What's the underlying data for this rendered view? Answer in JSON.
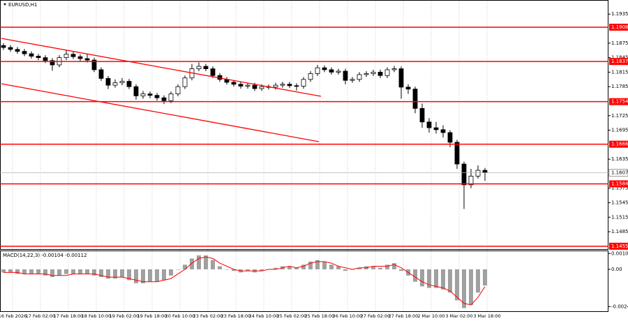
{
  "chart_data": [
    {
      "type": "candlestick",
      "title": "EURUSD,H1",
      "candles": [
        [
          1.187,
          1.1875,
          1.1861,
          1.1866
        ],
        [
          1.1866,
          1.1871,
          1.1857,
          1.1862
        ],
        [
          1.1862,
          1.1867,
          1.1853,
          1.1858
        ],
        [
          1.1858,
          1.1863,
          1.1848,
          1.1853
        ],
        [
          1.1853,
          1.1858,
          1.1843,
          1.1848
        ],
        [
          1.1848,
          1.1853,
          1.184,
          1.1845
        ],
        [
          1.1845,
          1.185,
          1.1834,
          1.1839
        ],
        [
          1.1839,
          1.1844,
          1.1818,
          1.183
        ],
        [
          1.183,
          1.185,
          1.1825,
          1.1845
        ],
        [
          1.1845,
          1.186,
          1.184,
          1.1852
        ],
        [
          1.1852,
          1.1857,
          1.1842,
          1.1847
        ],
        [
          1.1847,
          1.1852,
          1.1838,
          1.1843
        ],
        [
          1.1843,
          1.1852,
          1.1835,
          1.184
        ],
        [
          1.184,
          1.1845,
          1.1815,
          1.182
        ],
        [
          1.182,
          1.1825,
          1.1797,
          1.1802
        ],
        [
          1.1802,
          1.1807,
          1.178,
          1.1788
        ],
        [
          1.1788,
          1.18,
          1.1783,
          1.1793
        ],
        [
          1.1793,
          1.1803,
          1.1788,
          1.1796
        ],
        [
          1.1796,
          1.1801,
          1.178,
          1.1785
        ],
        [
          1.1785,
          1.179,
          1.1758,
          1.1766
        ],
        [
          1.1766,
          1.1776,
          1.176,
          1.177
        ],
        [
          1.177,
          1.1775,
          1.1761,
          1.1767
        ],
        [
          1.1767,
          1.1772,
          1.1756,
          1.1762
        ],
        [
          1.1762,
          1.1767,
          1.1749,
          1.1756
        ],
        [
          1.1756,
          1.1775,
          1.1751,
          1.177
        ],
        [
          1.177,
          1.179,
          1.1765,
          1.1785
        ],
        [
          1.1785,
          1.1808,
          1.178,
          1.1803
        ],
        [
          1.1803,
          1.1832,
          1.1798,
          1.1822
        ],
        [
          1.1822,
          1.1835,
          1.1817,
          1.1827
        ],
        [
          1.1827,
          1.1832,
          1.1817,
          1.1822
        ],
        [
          1.1822,
          1.1827,
          1.1803,
          1.1808
        ],
        [
          1.1808,
          1.1813,
          1.1795,
          1.18
        ],
        [
          1.18,
          1.1805,
          1.1789,
          1.1794
        ],
        [
          1.1794,
          1.1799,
          1.1785,
          1.179
        ],
        [
          1.179,
          1.1795,
          1.1781,
          1.1786
        ],
        [
          1.1786,
          1.1793,
          1.1781,
          1.1788
        ],
        [
          1.1788,
          1.1793,
          1.1776,
          1.1781
        ],
        [
          1.1781,
          1.179,
          1.1776,
          1.1785
        ],
        [
          1.1785,
          1.179,
          1.1779,
          1.1784
        ],
        [
          1.1784,
          1.1793,
          1.1779,
          1.1788
        ],
        [
          1.1788,
          1.1795,
          1.1783,
          1.179
        ],
        [
          1.179,
          1.1795,
          1.1782,
          1.1787
        ],
        [
          1.1787,
          1.1792,
          1.1777,
          1.1786
        ],
        [
          1.1786,
          1.1805,
          1.1781,
          1.18
        ],
        [
          1.18,
          1.1817,
          1.1795,
          1.1812
        ],
        [
          1.1812,
          1.183,
          1.1807,
          1.1824
        ],
        [
          1.1824,
          1.1829,
          1.1815,
          1.182
        ],
        [
          1.182,
          1.1825,
          1.181,
          1.1815
        ],
        [
          1.1815,
          1.1822,
          1.181,
          1.1817
        ],
        [
          1.1817,
          1.1822,
          1.179,
          1.1798
        ],
        [
          1.1798,
          1.1805,
          1.1793,
          1.18
        ],
        [
          1.18,
          1.1815,
          1.1795,
          1.181
        ],
        [
          1.181,
          1.1817,
          1.1805,
          1.1812
        ],
        [
          1.1812,
          1.182,
          1.1807,
          1.1815
        ],
        [
          1.1815,
          1.182,
          1.1803,
          1.1808
        ],
        [
          1.1808,
          1.1825,
          1.1803,
          1.182
        ],
        [
          1.182,
          1.1828,
          1.1815,
          1.1822
        ],
        [
          1.1822,
          1.1827,
          1.176,
          1.1784
        ],
        [
          1.1784,
          1.179,
          1.177,
          1.178
        ],
        [
          1.178,
          1.1785,
          1.173,
          1.174
        ],
        [
          1.174,
          1.175,
          1.17,
          1.1712
        ],
        [
          1.1712,
          1.172,
          1.169,
          1.17
        ],
        [
          1.17,
          1.1712,
          1.1688,
          1.1696
        ],
        [
          1.1696,
          1.1705,
          1.168,
          1.169
        ],
        [
          1.169,
          1.1695,
          1.166,
          1.167
        ],
        [
          1.167,
          1.1675,
          1.1615,
          1.1625
        ],
        [
          1.1625,
          1.163,
          1.1532,
          1.1582
        ],
        [
          1.1582,
          1.1615,
          1.1575,
          1.16
        ],
        [
          1.16,
          1.1622,
          1.1595,
          1.1612
        ],
        [
          1.1612,
          1.1617,
          1.159,
          1.1607
        ]
      ],
      "ylim": [
        1.1449,
        1.1957
      ],
      "yticks": [
        1.1935,
        1.1875,
        1.1845,
        1.1815,
        1.1785,
        1.1725,
        1.1695,
        1.1635,
        1.1575,
        1.1545,
        1.1515,
        1.1485
      ],
      "levels": [
        1.1908,
        1.1837,
        1.1754,
        1.1666,
        1.1584,
        1.1455
      ],
      "level_color": "#ff0000",
      "current_price": 1.1607,
      "grid": true,
      "x_labels": [
        "16 Feb 2026",
        "17 Feb 02:00",
        "17 Feb 18:00",
        "18 Feb 10:00",
        "19 Feb 02:00",
        "19 Feb 18:00",
        "20 Feb 10:00",
        "23 Feb 02:00",
        "23 Feb 18:00",
        "24 Feb 10:00",
        "25 Feb 02:00",
        "25 Feb 18:00",
        "26 Feb 10:00",
        "27 Feb 02:00",
        "27 Feb 18:00",
        "2 Mar 10:00",
        "3 Mar 02:00",
        "3 Mar 18:00"
      ]
    },
    {
      "type": "macd",
      "title": "MACD(14,22,3) -0.00104 -0.00112",
      "histogram": [
        -0.0002,
        -0.0002,
        -0.0003,
        -0.0003,
        -0.0003,
        -0.0003,
        -0.0004,
        -0.0005,
        -0.0004,
        -0.0003,
        -0.0003,
        -0.0003,
        -0.0003,
        -0.0004,
        -0.0005,
        -0.0006,
        -0.0006,
        -0.0005,
        -0.0007,
        -0.0009,
        -0.0009,
        -0.0008,
        -0.0008,
        -0.0007,
        -0.0004,
        0.0,
        0.0003,
        0.0007,
        0.0009,
        0.0009,
        0.0006,
        0.0002,
        0.0,
        -0.0001,
        -0.0002,
        -0.0001,
        -0.0002,
        -0.0001,
        0.0,
        0.0001,
        0.0002,
        0.0002,
        0.0001,
        0.0003,
        0.0005,
        0.0006,
        0.0005,
        0.0003,
        0.0002,
        -0.0001,
        0.0,
        0.0001,
        0.0002,
        0.0002,
        0.0001,
        0.0003,
        0.0004,
        -0.0001,
        -0.0004,
        -0.0008,
        -0.0011,
        -0.0012,
        -0.0012,
        -0.0013,
        -0.0015,
        -0.002,
        -0.0025,
        -0.0023,
        -0.0015,
        -0.00104
      ],
      "histogram_color": "#a0a0a0",
      "signal": [
        -0.0002,
        -0.0002,
        -0.0002,
        -0.0003,
        -0.0003,
        -0.0003,
        -0.0003,
        -0.0004,
        -0.0004,
        -0.0004,
        -0.0003,
        -0.0003,
        -0.0003,
        -0.0003,
        -0.0004,
        -0.0005,
        -0.0005,
        -0.0005,
        -0.0006,
        -0.0007,
        -0.0008,
        -0.0008,
        -0.0008,
        -0.0007,
        -0.0006,
        -0.0003,
        0.0,
        0.0004,
        0.0007,
        0.0008,
        0.0007,
        0.0004,
        0.0002,
        0.0,
        -0.0001,
        -0.0001,
        -0.0001,
        -0.0001,
        0.0,
        0.0,
        0.0001,
        0.0002,
        0.0001,
        0.0002,
        0.0004,
        0.0005,
        0.0005,
        0.0004,
        0.0002,
        0.0001,
        0.0,
        0.0001,
        0.0001,
        0.0002,
        0.0002,
        0.0002,
        0.0003,
        0.0001,
        -0.0002,
        -0.0005,
        -0.0008,
        -0.001,
        -0.0011,
        -0.0012,
        -0.0014,
        -0.0018,
        -0.0022,
        -0.0023,
        -0.0018,
        -0.00112
      ],
      "signal_color": "#ff0000",
      "ylim": [
        -0.00275,
        0.00117
      ],
      "yticks": [
        0.00102,
        {
          "value": 0,
          "label": "0.00"
        },
        -0.00241
      ]
    }
  ]
}
